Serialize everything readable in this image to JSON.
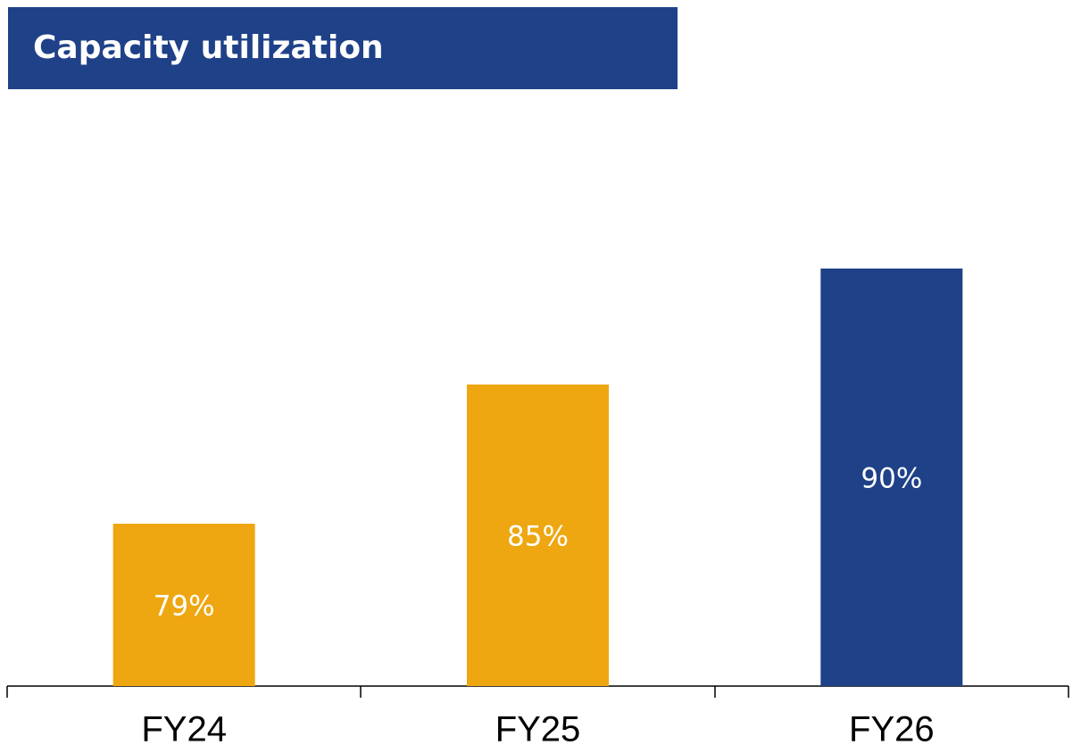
{
  "chart_data": {
    "type": "bar",
    "title": "Capacity utilization",
    "categories": [
      "FY24",
      "FY25",
      "FY26"
    ],
    "values": [
      79,
      85,
      90
    ],
    "value_labels": [
      "79%",
      "85%",
      "90%"
    ],
    "colors": [
      "#eea711",
      "#eea711",
      "#1f4188"
    ],
    "ylim": [
      72,
      95
    ]
  }
}
